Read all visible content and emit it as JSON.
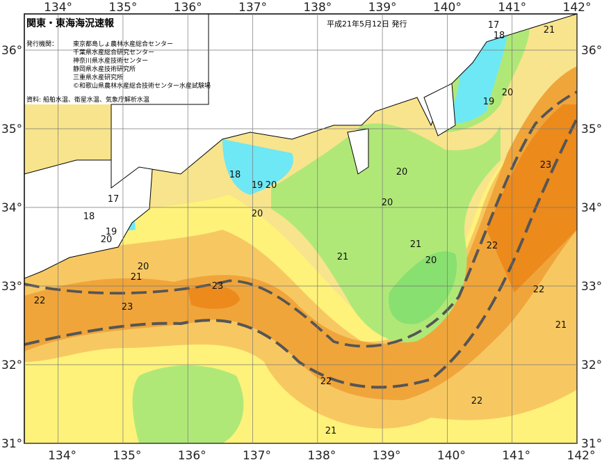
{
  "header": {
    "title": "関東・東海海況速報",
    "issued": "平成21年5月12日 発行",
    "agencies_label": "発行機関：",
    "agencies": [
      "東京都島しょ農林水産総合センター",
      "千葉県水産総合研究センター",
      "神奈川県水産技術センター",
      "静岡県水産技術研究所",
      "三重県水産研究所",
      "©和歌山県農林水産総合技術センター水産試験場"
    ],
    "source": "資料: 船舶水温、衛星水温、気象庁解析水温"
  },
  "map": {
    "longitude_labels": [
      "134°",
      "135°",
      "136°",
      "137°",
      "138°",
      "139°",
      "140°",
      "141°",
      "142°"
    ],
    "latitude_labels": [
      "31°",
      "32°",
      "33°",
      "34°",
      "35°",
      "36°"
    ],
    "contour_labels": [
      17,
      18,
      21,
      20,
      19,
      23,
      20,
      20,
      18,
      19,
      20,
      17,
      18,
      20,
      19,
      20,
      21,
      20,
      22,
      21,
      20,
      21,
      23,
      22,
      22,
      23,
      21,
      22,
      22,
      21
    ]
  }
}
